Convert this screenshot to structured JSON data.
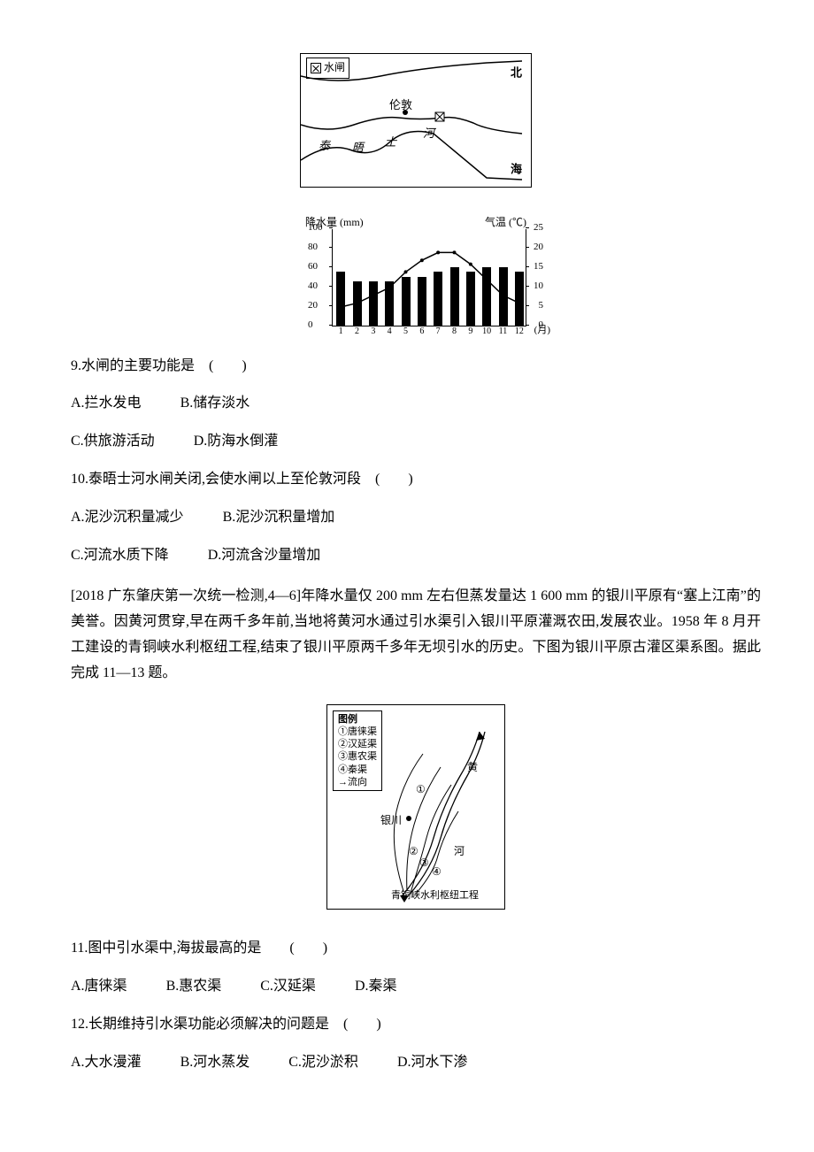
{
  "map1": {
    "legend_symbol_label": "水闸",
    "sea_top": "北",
    "sea_bottom": "海",
    "city": "伦敦",
    "river1": "泰",
    "river2": "晤",
    "river3": "士",
    "river4": "河"
  },
  "climate": {
    "ylabel_left": "降水量 (mm)",
    "ylabel_right": "气温 (℃)",
    "xlabel": "(月)",
    "yticks_left": [
      0,
      20,
      40,
      60,
      80,
      100
    ],
    "yticks_right": [
      0,
      5,
      10,
      15,
      20,
      25
    ],
    "months": [
      "1",
      "2",
      "3",
      "4",
      "5",
      "6",
      "7",
      "8",
      "9",
      "10",
      "11",
      "12"
    ],
    "precip": [
      55,
      45,
      45,
      45,
      50,
      50,
      55,
      60,
      55,
      60,
      60,
      55
    ],
    "temp": [
      5,
      6,
      8,
      10,
      14,
      17,
      19,
      19,
      16,
      12,
      8,
      6
    ],
    "precip_max": 100,
    "temp_max": 25,
    "bar_color": "#000000",
    "line_color": "#000000"
  },
  "q9": {
    "stem": "9.水闸的主要功能是　(　　)",
    "A": "A.拦水发电",
    "B": "B.储存淡水",
    "C": "C.供旅游活动",
    "D": "D.防海水倒灌"
  },
  "q10": {
    "stem": "10.泰晤士河水闸关闭,会使水闸以上至伦敦河段　(　　)",
    "A": "A.泥沙沉积量减少",
    "B": "B.泥沙沉积量增加",
    "C": "C.河流水质下降",
    "D": "D.河流含沙量增加"
  },
  "passage2": "[2018 广东肇庆第一次统一检测,4—6]年降水量仅 200 mm 左右但蒸发量达 1 600 mm 的银川平原有“塞上江南”的美誉。因黄河贯穿,早在两千多年前,当地将黄河水通过引水渠引入银川平原灌溉农田,发展农业。1958 年 8 月开工建设的青铜峡水利枢纽工程,结束了银川平原两千多年无坝引水的历史。下图为银川平原古灌区渠系图。据此完成 11—13 题。",
  "map2": {
    "legend_title": "图例",
    "items": [
      "①唐徕渠",
      "②汉延渠",
      "③惠农渠",
      "④秦渠",
      "→流向"
    ],
    "river_a": "黄",
    "river_b": "河",
    "city": "银川",
    "project": "青铜峡水利枢纽工程",
    "n1": "①",
    "n2": "②",
    "n3": "③",
    "n4": "④"
  },
  "q11": {
    "stem": "11.图中引水渠中,海拔最高的是　　(　　)",
    "A": "A.唐徕渠",
    "B": "B.惠农渠",
    "C": "C.汉延渠",
    "D": "D.秦渠"
  },
  "q12": {
    "stem": "12.长期维持引水渠功能必须解决的问题是　(　　)",
    "A": "A.大水漫灌",
    "B": "B.河水蒸发",
    "C": "C.泥沙淤积",
    "D": "D.河水下渗"
  }
}
